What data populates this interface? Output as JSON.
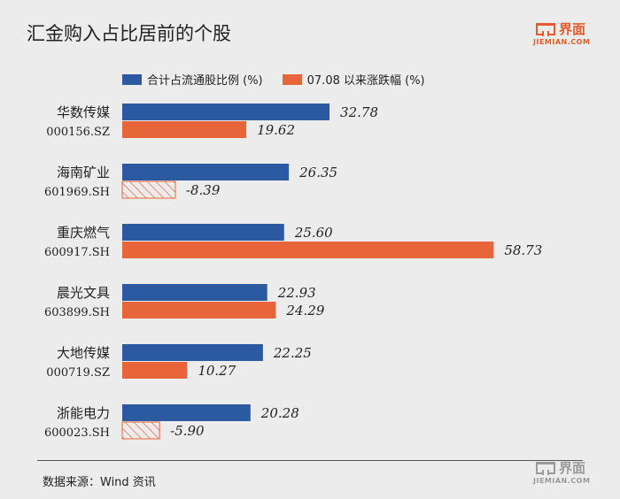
{
  "title": "汇金购入占比居前的个股",
  "logo": {
    "text": "界面",
    "sub": "JIEMIAN.COM"
  },
  "source": "数据来源：Wind 资讯",
  "colors": {
    "blue": "#2c5aa0",
    "orange": "#e8643a",
    "background": "#ececec"
  },
  "chart_data": {
    "type": "bar",
    "orientation": "horizontal",
    "categories": [
      {
        "name": "华数传媒",
        "code": "000156.SZ"
      },
      {
        "name": "海南矿业",
        "code": "601969.SH"
      },
      {
        "name": "重庆燃气",
        "code": "600917.SH"
      },
      {
        "name": "晨光文具",
        "code": "603899.SH"
      },
      {
        "name": "大地传媒",
        "code": "000719.SZ"
      },
      {
        "name": "浙能电力",
        "code": "600023.SH"
      }
    ],
    "series": [
      {
        "name": "合计占流通股比例 (%)",
        "color": "#2c5aa0",
        "values": [
          32.78,
          26.35,
          25.6,
          22.93,
          22.25,
          20.28
        ]
      },
      {
        "name": "07.08 以来涨跌幅 (%)",
        "color": "#e8643a",
        "values": [
          19.62,
          -8.39,
          58.73,
          24.29,
          10.27,
          -5.9
        ]
      }
    ],
    "value_labels": [
      [
        "32.78",
        "26.35",
        "25.60",
        "22.93",
        "22.25",
        "20.28"
      ],
      [
        "19.62",
        "-8.39",
        "58.73",
        "24.29",
        "10.27",
        "-5.90"
      ]
    ],
    "negative_style": "hatched",
    "legend_position": "top"
  }
}
